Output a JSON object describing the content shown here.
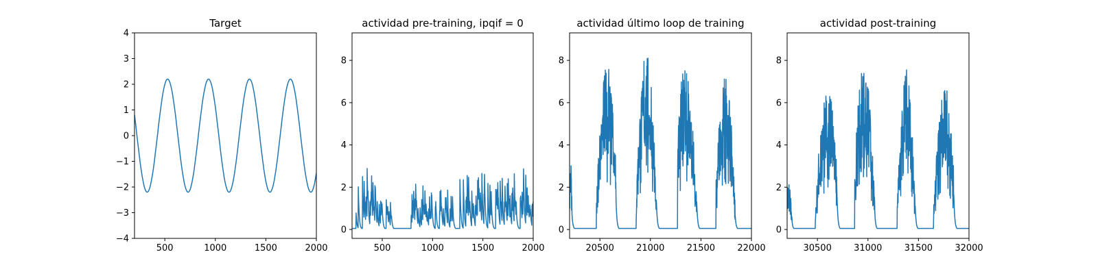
{
  "figure": {
    "width_px_hint": "",
    "background": "#ffffff"
  },
  "colors": {
    "series": "#1f77b4",
    "axes": "#000000"
  },
  "chart_data": [
    {
      "type": "line",
      "title": "Target",
      "xlabel": "",
      "ylabel": "",
      "xlim": [
        200,
        2000
      ],
      "ylim": [
        -4,
        4
      ],
      "xticks": [
        500,
        1000,
        1500,
        2000
      ],
      "yticks": [
        -4,
        -3,
        -2,
        -1,
        0,
        1,
        2,
        3,
        4
      ],
      "series": [
        {
          "kind": "sine",
          "amplitude": 2.2,
          "period": 405,
          "peak_x": 528,
          "x_start": 200,
          "x_end": 2000
        }
      ]
    },
    {
      "type": "line",
      "title": "actividad pre-training, ipqif = 0",
      "xlabel": "",
      "ylabel": "",
      "xlim": [
        200,
        2000
      ],
      "ylim": [
        -0.42,
        9.3
      ],
      "xticks": [
        500,
        1000,
        1500,
        2000
      ],
      "yticks": [
        0,
        2,
        4,
        6,
        8
      ],
      "series": [
        {
          "kind": "activity",
          "x_start": 200,
          "x_end": 2000,
          "baseline": 0.05,
          "active_intervals": [
            [
              240,
              270
            ],
            [
              290,
              470
            ],
            [
              470,
              500
            ],
            [
              540,
              580
            ],
            [
              580,
              600
            ],
            [
              780,
              1000
            ],
            [
              1010,
              1040
            ],
            [
              1070,
              1200
            ],
            [
              1270,
              2000
            ]
          ],
          "envelope_x": [
            200,
            300,
            350,
            400,
            450,
            500,
            550,
            600,
            780,
            850,
            950,
            1050,
            1150,
            1250,
            1300,
            1350,
            1400,
            1500,
            1600,
            1700,
            1800,
            1850,
            1900,
            1950,
            2000
          ],
          "envelope_y": [
            1.5,
            2.5,
            3.1,
            2.6,
            2.2,
            1.5,
            1.5,
            1.5,
            1.5,
            2.4,
            2.1,
            2.1,
            2.2,
            2.2,
            3.4,
            3.0,
            2.3,
            3.2,
            3.1,
            2.6,
            2.6,
            3.3,
            3.2,
            2.1,
            2.0
          ]
        }
      ]
    },
    {
      "type": "line",
      "title": "actividad último loop de training",
      "xlabel": "",
      "ylabel": "",
      "xlim": [
        20200,
        22000
      ],
      "ylim": [
        -0.42,
        9.3
      ],
      "xticks": [
        20500,
        21000,
        21500,
        22000
      ],
      "yticks": [
        0,
        2,
        4,
        6,
        8
      ],
      "series": [
        {
          "kind": "bursts",
          "x_start": 20200,
          "x_end": 22000,
          "baseline": 0.05,
          "bursts": [
            {
              "start": 20200,
              "end": 20225,
              "peak": 3.5,
              "center": 20210
            },
            {
              "start": 20465,
              "end": 20660,
              "peak": 7.8,
              "center": 20570
            },
            {
              "start": 20860,
              "end": 21060,
              "peak": 8.5,
              "center": 20960
            },
            {
              "start": 21270,
              "end": 21460,
              "peak": 7.6,
              "center": 21340
            },
            {
              "start": 21650,
              "end": 21840,
              "peak": 7.4,
              "center": 21740
            }
          ]
        }
      ]
    },
    {
      "type": "line",
      "title": "actividad post-training",
      "xlabel": "",
      "ylabel": "",
      "xlim": [
        30200,
        32000
      ],
      "ylim": [
        -0.42,
        9.3
      ],
      "xticks": [
        30500,
        31000,
        31500,
        32000
      ],
      "yticks": [
        0,
        2,
        4,
        6,
        8
      ],
      "series": [
        {
          "kind": "bursts",
          "x_start": 30200,
          "x_end": 32000,
          "baseline": 0.05,
          "bursts": [
            {
              "start": 30200,
              "end": 30250,
              "peak": 2.3,
              "center": 30215
            },
            {
              "start": 30480,
              "end": 30690,
              "peak": 6.6,
              "center": 30600
            },
            {
              "start": 30870,
              "end": 31070,
              "peak": 7.7,
              "center": 30960
            },
            {
              "start": 31290,
              "end": 31470,
              "peak": 7.6,
              "center": 31380
            },
            {
              "start": 31650,
              "end": 31850,
              "peak": 6.8,
              "center": 31760
            }
          ]
        }
      ]
    }
  ]
}
